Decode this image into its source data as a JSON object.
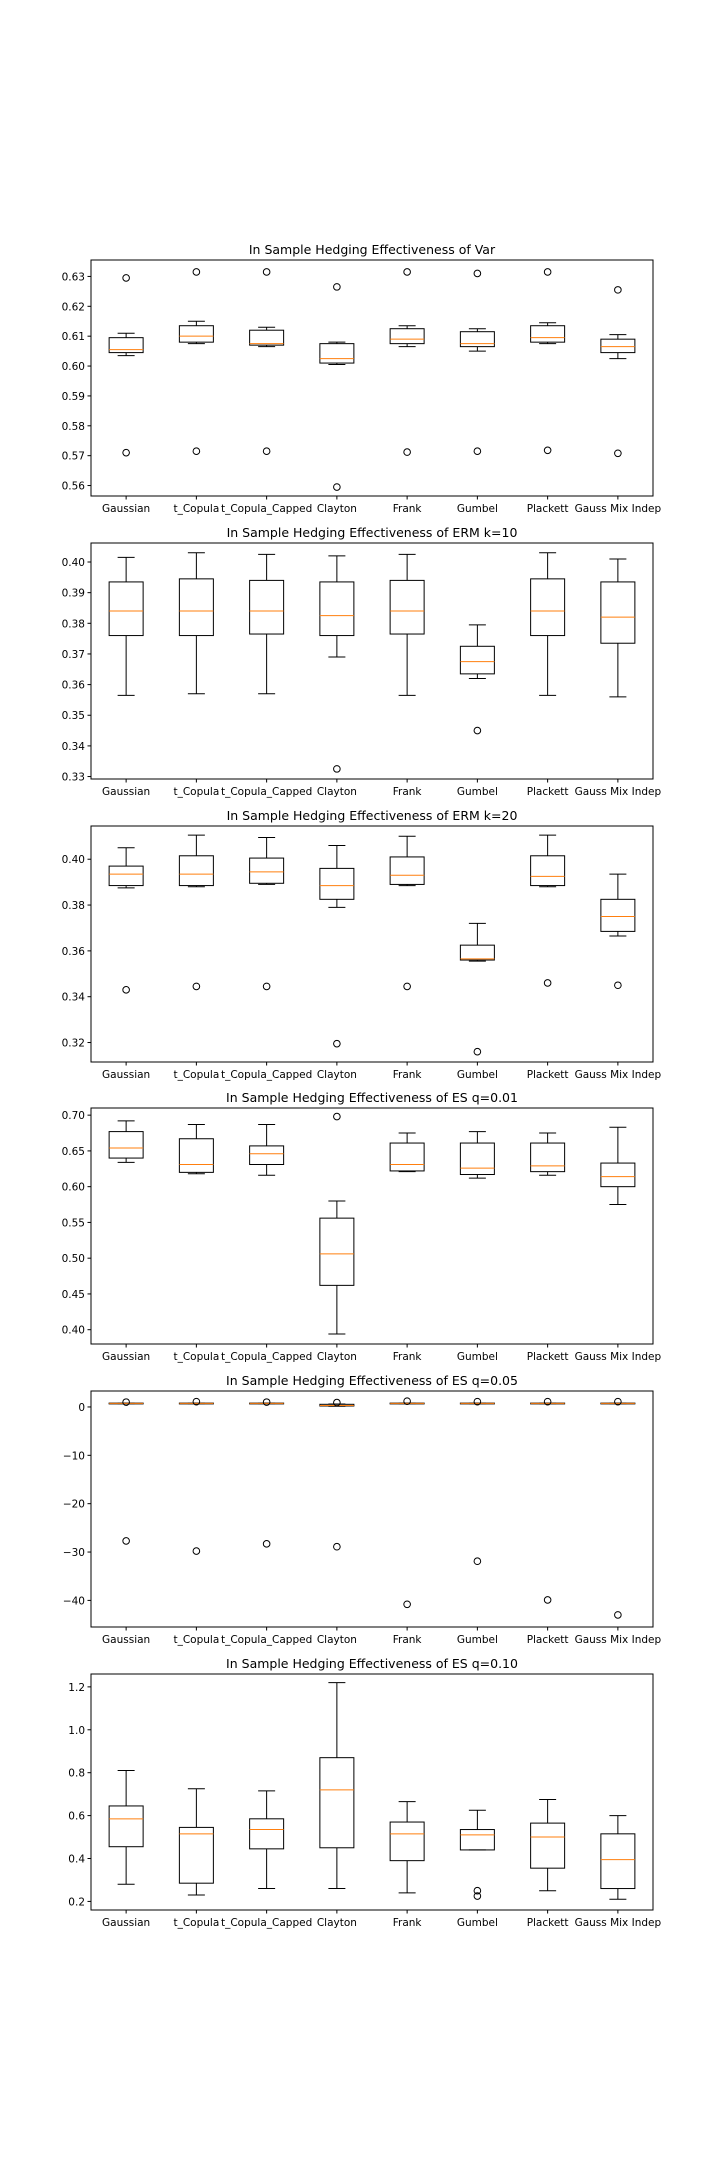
{
  "chart_data": [
    {
      "type": "box",
      "title": "In Sample Hedging Effectiveness of Var",
      "categories": [
        "Gaussian",
        "t_Copula",
        "t_Copula_Capped",
        "Clayton",
        "Frank",
        "Gumbel",
        "Plackett",
        "Gauss Mix Indep"
      ],
      "yticks": [
        0.56,
        0.57,
        0.58,
        0.59,
        0.6,
        0.61,
        0.62,
        0.63
      ],
      "ytick_labels": [
        "0.56",
        "0.57",
        "0.58",
        "0.59",
        "0.60",
        "0.61",
        "0.62",
        "0.63"
      ],
      "ylim": [
        0.5565,
        0.6355
      ],
      "boxes": [
        {
          "whislo": 0.6035,
          "q1": 0.6045,
          "med": 0.6055,
          "q3": 0.6095,
          "whishi": 0.611,
          "fliers": [
            0.6295,
            0.571
          ]
        },
        {
          "whislo": 0.6075,
          "q1": 0.608,
          "med": 0.61,
          "q3": 0.6135,
          "whishi": 0.615,
          "fliers": [
            0.6315,
            0.5715
          ]
        },
        {
          "whislo": 0.6065,
          "q1": 0.607,
          "med": 0.6075,
          "q3": 0.612,
          "whishi": 0.613,
          "fliers": [
            0.6315,
            0.5715
          ]
        },
        {
          "whislo": 0.6005,
          "q1": 0.601,
          "med": 0.6025,
          "q3": 0.6075,
          "whishi": 0.608,
          "fliers": [
            0.6265,
            0.5595
          ]
        },
        {
          "whislo": 0.6065,
          "q1": 0.6075,
          "med": 0.609,
          "q3": 0.6125,
          "whishi": 0.6135,
          "fliers": [
            0.6315,
            0.5712
          ]
        },
        {
          "whislo": 0.605,
          "q1": 0.6065,
          "med": 0.6075,
          "q3": 0.6115,
          "whishi": 0.6125,
          "fliers": [
            0.631,
            0.5715
          ]
        },
        {
          "whislo": 0.6075,
          "q1": 0.608,
          "med": 0.6095,
          "q3": 0.6135,
          "whishi": 0.6145,
          "fliers": [
            0.6315,
            0.5718
          ]
        },
        {
          "whislo": 0.6025,
          "q1": 0.6045,
          "med": 0.6065,
          "q3": 0.609,
          "whishi": 0.6105,
          "fliers": [
            0.6255,
            0.5708
          ]
        }
      ]
    },
    {
      "type": "box",
      "title": "In Sample Hedging Effectiveness of ERM k=10",
      "categories": [
        "Gaussian",
        "t_Copula",
        "t_Copula_Capped",
        "Clayton",
        "Frank",
        "Gumbel",
        "Plackett",
        "Gauss Mix Indep"
      ],
      "yticks": [
        0.33,
        0.34,
        0.35,
        0.36,
        0.37,
        0.38,
        0.39,
        0.4
      ],
      "ytick_labels": [
        "0.33",
        "0.34",
        "0.35",
        "0.36",
        "0.37",
        "0.38",
        "0.39",
        "0.40"
      ],
      "ylim": [
        0.3292,
        0.4062
      ],
      "boxes": [
        {
          "whislo": 0.3565,
          "q1": 0.376,
          "med": 0.384,
          "q3": 0.3935,
          "whishi": 0.4015,
          "fliers": []
        },
        {
          "whislo": 0.357,
          "q1": 0.376,
          "med": 0.384,
          "q3": 0.3945,
          "whishi": 0.403,
          "fliers": []
        },
        {
          "whislo": 0.357,
          "q1": 0.3765,
          "med": 0.384,
          "q3": 0.394,
          "whishi": 0.4025,
          "fliers": []
        },
        {
          "whislo": 0.369,
          "q1": 0.376,
          "med": 0.3825,
          "q3": 0.3935,
          "whishi": 0.402,
          "fliers": [
            0.3325
          ]
        },
        {
          "whislo": 0.3565,
          "q1": 0.3765,
          "med": 0.384,
          "q3": 0.394,
          "whishi": 0.4025,
          "fliers": []
        },
        {
          "whislo": 0.362,
          "q1": 0.3635,
          "med": 0.3675,
          "q3": 0.3725,
          "whishi": 0.3795,
          "fliers": [
            0.345
          ]
        },
        {
          "whislo": 0.3565,
          "q1": 0.376,
          "med": 0.384,
          "q3": 0.3945,
          "whishi": 0.403,
          "fliers": []
        },
        {
          "whislo": 0.356,
          "q1": 0.3735,
          "med": 0.382,
          "q3": 0.3935,
          "whishi": 0.401,
          "fliers": []
        }
      ]
    },
    {
      "type": "box",
      "title": "In Sample Hedging Effectiveness of ERM k=20",
      "categories": [
        "Gaussian",
        "t_Copula",
        "t_Copula_Capped",
        "Clayton",
        "Frank",
        "Gumbel",
        "Plackett",
        "Gauss Mix Indep"
      ],
      "yticks": [
        0.32,
        0.34,
        0.36,
        0.38,
        0.4
      ],
      "ytick_labels": [
        "0.32",
        "0.34",
        "0.36",
        "0.38",
        "0.40"
      ],
      "ylim": [
        0.3115,
        0.4145
      ],
      "boxes": [
        {
          "whislo": 0.3875,
          "q1": 0.3885,
          "med": 0.3935,
          "q3": 0.397,
          "whishi": 0.405,
          "fliers": [
            0.343
          ]
        },
        {
          "whislo": 0.388,
          "q1": 0.3885,
          "med": 0.3935,
          "q3": 0.4015,
          "whishi": 0.4105,
          "fliers": [
            0.3445
          ]
        },
        {
          "whislo": 0.389,
          "q1": 0.3895,
          "med": 0.3945,
          "q3": 0.4005,
          "whishi": 0.4095,
          "fliers": [
            0.3445
          ]
        },
        {
          "whislo": 0.379,
          "q1": 0.3825,
          "med": 0.3885,
          "q3": 0.396,
          "whishi": 0.406,
          "fliers": [
            0.3195
          ]
        },
        {
          "whislo": 0.3885,
          "q1": 0.389,
          "med": 0.393,
          "q3": 0.401,
          "whishi": 0.41,
          "fliers": [
            0.3445
          ]
        },
        {
          "whislo": 0.3555,
          "q1": 0.356,
          "med": 0.3565,
          "q3": 0.3625,
          "whishi": 0.372,
          "fliers": [
            0.316
          ]
        },
        {
          "whislo": 0.388,
          "q1": 0.3885,
          "med": 0.3925,
          "q3": 0.4015,
          "whishi": 0.4105,
          "fliers": [
            0.346
          ]
        },
        {
          "whislo": 0.3665,
          "q1": 0.3685,
          "med": 0.375,
          "q3": 0.3825,
          "whishi": 0.3935,
          "fliers": [
            0.345
          ]
        }
      ]
    },
    {
      "type": "box",
      "title": "In Sample Hedging Effectiveness of ES q=0.01",
      "categories": [
        "Gaussian",
        "t_Copula",
        "t_Copula_Capped",
        "Clayton",
        "Frank",
        "Gumbel",
        "Plackett",
        "Gauss Mix Indep"
      ],
      "yticks": [
        0.4,
        0.45,
        0.5,
        0.55,
        0.6,
        0.65,
        0.7
      ],
      "ytick_labels": [
        "0.40",
        "0.45",
        "0.50",
        "0.55",
        "0.60",
        "0.65",
        "0.70"
      ],
      "ylim": [
        0.38,
        0.71
      ],
      "boxes": [
        {
          "whislo": 0.634,
          "q1": 0.64,
          "med": 0.654,
          "q3": 0.677,
          "whishi": 0.692,
          "fliers": []
        },
        {
          "whislo": 0.618,
          "q1": 0.62,
          "med": 0.631,
          "q3": 0.667,
          "whishi": 0.687,
          "fliers": []
        },
        {
          "whislo": 0.616,
          "q1": 0.631,
          "med": 0.646,
          "q3": 0.657,
          "whishi": 0.687,
          "fliers": []
        },
        {
          "whislo": 0.394,
          "q1": 0.462,
          "med": 0.506,
          "q3": 0.556,
          "whishi": 0.58,
          "fliers": [
            0.698
          ]
        },
        {
          "whislo": 0.621,
          "q1": 0.622,
          "med": 0.631,
          "q3": 0.661,
          "whishi": 0.675,
          "fliers": []
        },
        {
          "whislo": 0.612,
          "q1": 0.617,
          "med": 0.626,
          "q3": 0.661,
          "whishi": 0.677,
          "fliers": []
        },
        {
          "whislo": 0.616,
          "q1": 0.621,
          "med": 0.629,
          "q3": 0.661,
          "whishi": 0.675,
          "fliers": []
        },
        {
          "whislo": 0.575,
          "q1": 0.6,
          "med": 0.614,
          "q3": 0.633,
          "whishi": 0.683,
          "fliers": []
        }
      ]
    },
    {
      "type": "box",
      "title": "In Sample Hedging Effectiveness of ES q=0.05",
      "categories": [
        "Gaussian",
        "t_Copula",
        "t_Copula_Capped",
        "Clayton",
        "Frank",
        "Gumbel",
        "Plackett",
        "Gauss Mix Indep"
      ],
      "yticks": [
        0,
        -10,
        -20,
        -30,
        -40
      ],
      "ytick_labels": [
        "0",
        "−10",
        "−20",
        "−30",
        "−40"
      ],
      "ylim": [
        -45.5,
        3.3
      ],
      "boxes": [
        {
          "whislo": 0.7,
          "q1": 0.7,
          "med": 0.75,
          "q3": 0.8,
          "whishi": 0.8,
          "fliers": [
            1.0,
            -27.7
          ]
        },
        {
          "whislo": 0.7,
          "q1": 0.7,
          "med": 0.75,
          "q3": 0.8,
          "whishi": 0.8,
          "fliers": [
            1.1,
            -29.8
          ]
        },
        {
          "whislo": 0.7,
          "q1": 0.7,
          "med": 0.75,
          "q3": 0.8,
          "whishi": 0.8,
          "fliers": [
            1.0,
            -28.3
          ]
        },
        {
          "whislo": 0.15,
          "q1": 0.2,
          "med": 0.3,
          "q3": 0.55,
          "whishi": 0.6,
          "fliers": [
            0.9,
            -28.9
          ]
        },
        {
          "whislo": 0.7,
          "q1": 0.7,
          "med": 0.75,
          "q3": 0.8,
          "whishi": 0.8,
          "fliers": [
            1.2,
            -40.8
          ]
        },
        {
          "whislo": 0.7,
          "q1": 0.7,
          "med": 0.75,
          "q3": 0.8,
          "whishi": 0.8,
          "fliers": [
            1.1,
            -31.9
          ]
        },
        {
          "whislo": 0.7,
          "q1": 0.7,
          "med": 0.75,
          "q3": 0.8,
          "whishi": 0.8,
          "fliers": [
            1.1,
            -39.9
          ]
        },
        {
          "whislo": 0.7,
          "q1": 0.7,
          "med": 0.75,
          "q3": 0.8,
          "whishi": 0.8,
          "fliers": [
            1.1,
            -43.0
          ]
        }
      ]
    },
    {
      "type": "box",
      "title": "In Sample Hedging Effectiveness of ES q=0.10",
      "categories": [
        "Gaussian",
        "t_Copula",
        "t_Copula_Capped",
        "Clayton",
        "Frank",
        "Gumbel",
        "Plackett",
        "Gauss Mix Indep"
      ],
      "yticks": [
        0.2,
        0.4,
        0.6,
        0.8,
        1.0,
        1.2
      ],
      "ytick_labels": [
        "0.2",
        "0.4",
        "0.6",
        "0.8",
        "1.0",
        "1.2"
      ],
      "ylim": [
        0.16,
        1.26
      ],
      "boxes": [
        {
          "whislo": 0.28,
          "q1": 0.455,
          "med": 0.585,
          "q3": 0.645,
          "whishi": 0.81,
          "fliers": []
        },
        {
          "whislo": 0.23,
          "q1": 0.285,
          "med": 0.515,
          "q3": 0.545,
          "whishi": 0.725,
          "fliers": []
        },
        {
          "whislo": 0.26,
          "q1": 0.445,
          "med": 0.535,
          "q3": 0.585,
          "whishi": 0.715,
          "fliers": []
        },
        {
          "whislo": 0.26,
          "q1": 0.45,
          "med": 0.72,
          "q3": 0.87,
          "whishi": 1.22,
          "fliers": []
        },
        {
          "whislo": 0.24,
          "q1": 0.39,
          "med": 0.515,
          "q3": 0.57,
          "whishi": 0.665,
          "fliers": []
        },
        {
          "whislo": 0.44,
          "q1": 0.44,
          "med": 0.51,
          "q3": 0.535,
          "whishi": 0.625,
          "fliers": [
            0.25,
            0.225
          ]
        },
        {
          "whislo": 0.25,
          "q1": 0.355,
          "med": 0.5,
          "q3": 0.565,
          "whishi": 0.675,
          "fliers": []
        },
        {
          "whislo": 0.21,
          "q1": 0.26,
          "med": 0.395,
          "q3": 0.515,
          "whishi": 0.6,
          "fliers": []
        }
      ]
    }
  ],
  "colors": {
    "box": "#000000",
    "median": "#ff7f0e",
    "background": "#ffffff"
  }
}
